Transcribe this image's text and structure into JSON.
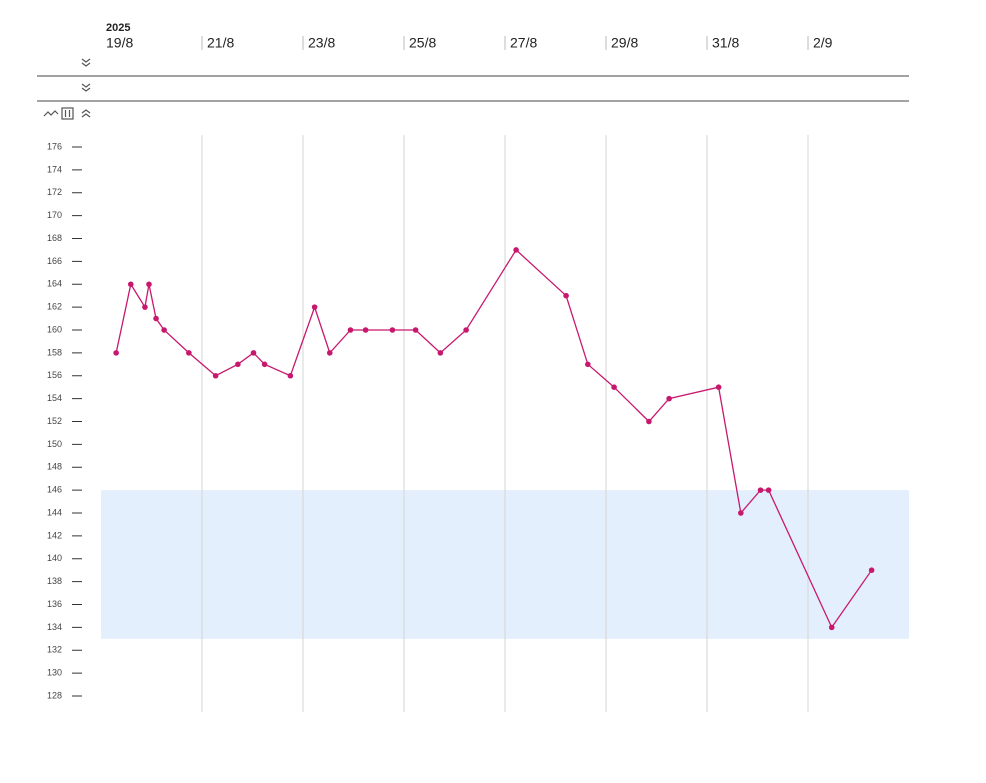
{
  "chart_data": {
    "type": "line",
    "year": "2025",
    "x": [
      0.3,
      0.59,
      0.87,
      0.95,
      1.09,
      1.25,
      1.74,
      2.27,
      2.71,
      3.02,
      3.24,
      3.75,
      4.23,
      4.53,
      4.94,
      5.24,
      5.77,
      6.23,
      6.72,
      7.23,
      8.22,
      9.21,
      9.64,
      10.16,
      10.85,
      11.25,
      12.23,
      12.67,
      13.06,
      13.22,
      14.47,
      15.26
    ],
    "values": [
      158,
      164,
      162,
      164,
      161,
      160,
      158,
      156,
      157,
      158,
      157,
      156,
      162,
      158,
      160,
      160,
      160,
      160,
      158,
      160,
      167,
      163,
      157,
      155,
      152,
      154,
      155,
      144,
      146,
      146,
      134,
      139
    ],
    "color": "#c8186e",
    "reference_range": [
      133,
      146
    ],
    "reference_color": "#e3effc",
    "xlim": [
      0,
      16
    ],
    "xticks": [
      {
        "value": 0,
        "label": "19/8"
      },
      {
        "value": 2,
        "label": "21/8"
      },
      {
        "value": 4,
        "label": "23/8"
      },
      {
        "value": 6,
        "label": "25/8"
      },
      {
        "value": 8,
        "label": "27/8"
      },
      {
        "value": 10,
        "label": "29/8"
      },
      {
        "value": 12,
        "label": "31/8"
      },
      {
        "value": 14,
        "label": "2/9"
      }
    ],
    "ylim": [
      128,
      176
    ],
    "yticks": [
      176,
      174,
      172,
      170,
      168,
      166,
      164,
      162,
      160,
      158,
      156,
      154,
      152,
      150,
      148,
      146,
      144,
      142,
      140,
      138,
      136,
      134,
      132,
      130,
      128
    ],
    "grid": true
  }
}
